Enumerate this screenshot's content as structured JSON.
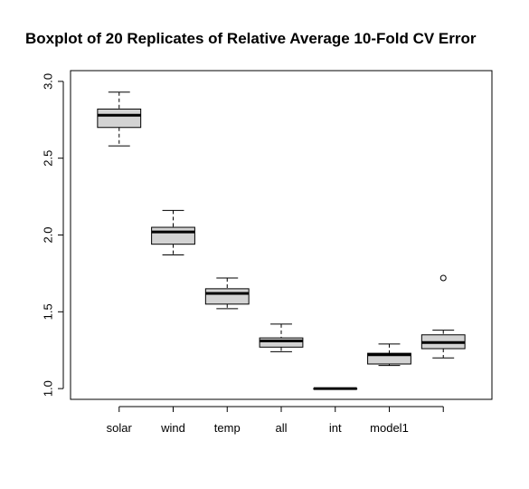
{
  "chart_data": {
    "type": "boxplot",
    "title": "Boxplot of 20 Replicates of Relative Average 10-Fold CV Error",
    "xlabel": "",
    "ylabel": "",
    "ylim": [
      0.93,
      3.07
    ],
    "yticks": [
      "1.0",
      "1.5",
      "2.0",
      "2.5",
      "3.0"
    ],
    "ytick_values": [
      1.0,
      1.5,
      2.0,
      2.5,
      3.0
    ],
    "grid": false,
    "box_color": "#d3d3d3",
    "categories": [
      "solar",
      "wind",
      "temp",
      "all",
      "int",
      "model1",
      ""
    ],
    "boxes": [
      {
        "label": "solar",
        "whisker_low": 2.58,
        "q1": 2.7,
        "median": 2.78,
        "q3": 2.82,
        "whisker_high": 2.93,
        "outliers": []
      },
      {
        "label": "wind",
        "whisker_low": 1.87,
        "q1": 1.94,
        "median": 2.02,
        "q3": 2.05,
        "whisker_high": 2.16,
        "outliers": []
      },
      {
        "label": "temp",
        "whisker_low": 1.52,
        "q1": 1.55,
        "median": 1.62,
        "q3": 1.65,
        "whisker_high": 1.72,
        "outliers": []
      },
      {
        "label": "all",
        "whisker_low": 1.24,
        "q1": 1.27,
        "median": 1.31,
        "q3": 1.33,
        "whisker_high": 1.42,
        "outliers": []
      },
      {
        "label": "int",
        "whisker_low": 1.0,
        "q1": 1.0,
        "median": 1.0,
        "q3": 1.0,
        "whisker_high": 1.0,
        "outliers": []
      },
      {
        "label": "model1",
        "whisker_low": 1.15,
        "q1": 1.16,
        "median": 1.22,
        "q3": 1.23,
        "whisker_high": 1.29,
        "outliers": []
      },
      {
        "label": "",
        "whisker_low": 1.2,
        "q1": 1.26,
        "median": 1.3,
        "q3": 1.35,
        "whisker_high": 1.38,
        "outliers": [
          1.72
        ]
      }
    ]
  }
}
